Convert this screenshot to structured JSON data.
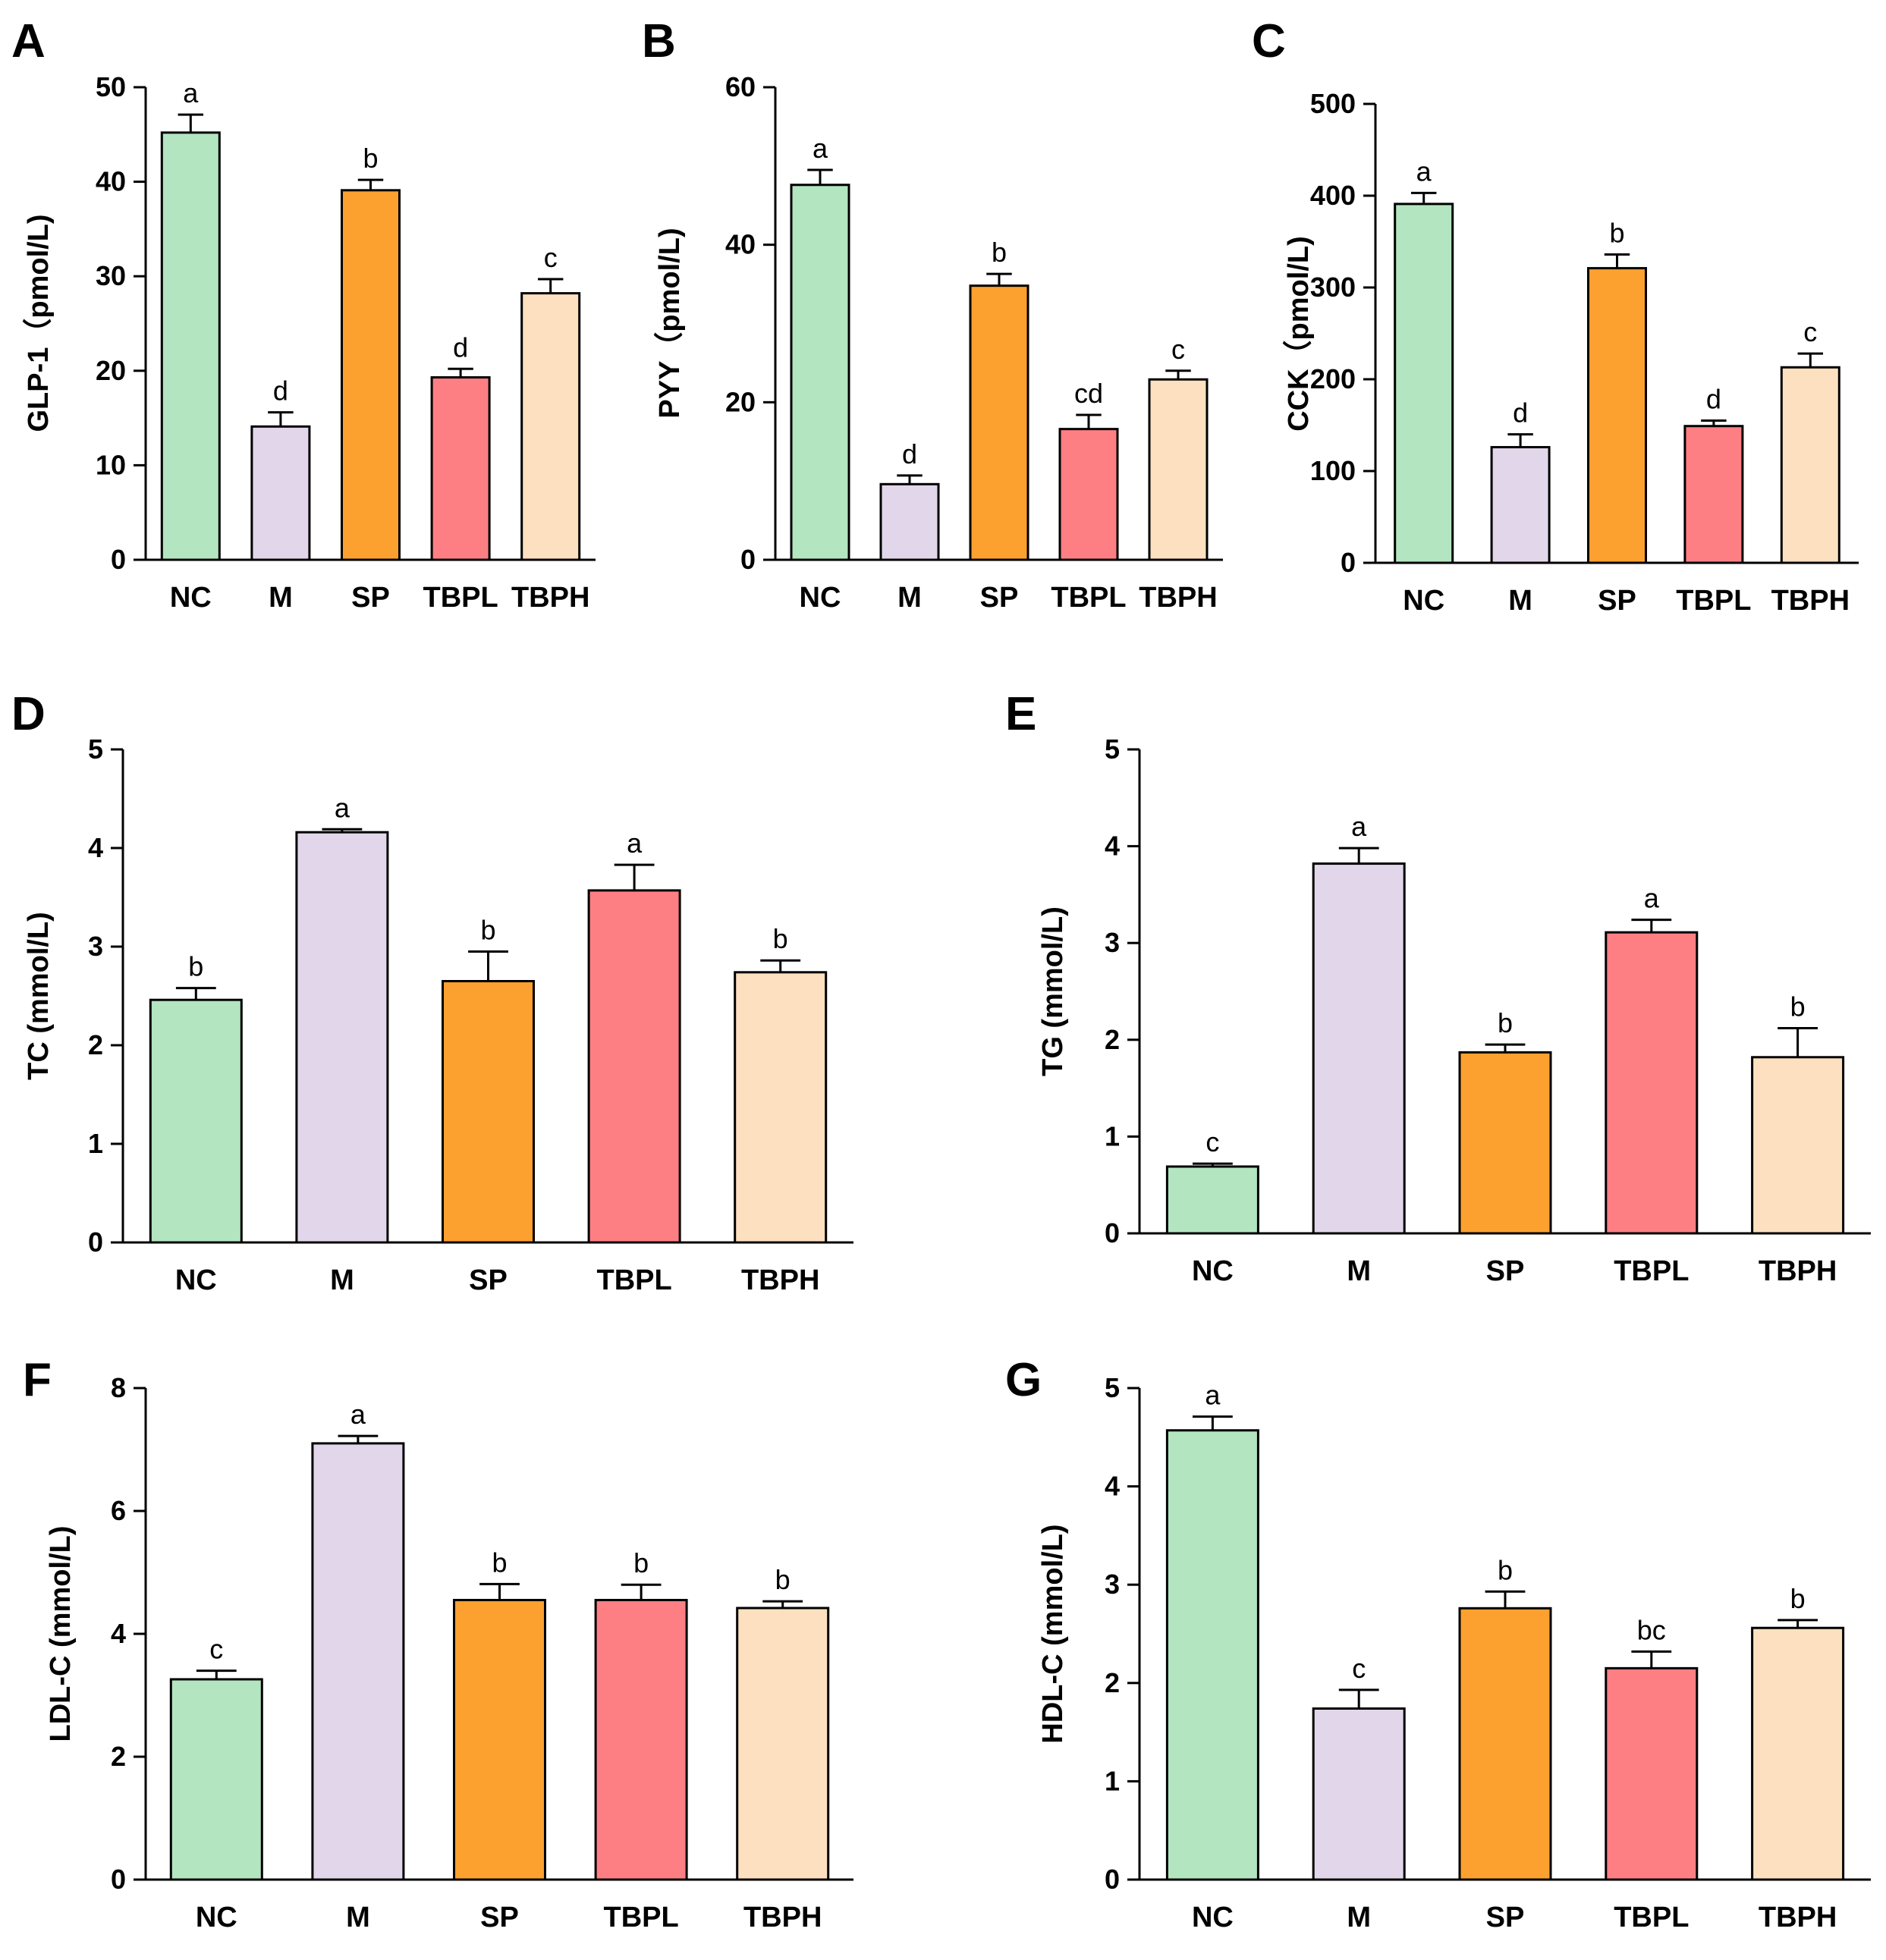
{
  "figure": {
    "description_free": true
  },
  "colors": {
    "NC": "#b3e5c1",
    "M": "#e2d7ea",
    "SP": "#fca02f",
    "TBPL": "#fe7f83",
    "TBPH": "#fde0c0",
    "stroke": "#000000"
  },
  "chart_data": [
    {
      "panel": "A",
      "type": "bar",
      "categories": [
        "NC",
        "M",
        "SP",
        "TBPL",
        "TBPH"
      ],
      "values": [
        45.2,
        14.1,
        39.1,
        19.3,
        28.2
      ],
      "errors": [
        1.9,
        1.5,
        1.1,
        0.9,
        1.5
      ],
      "letters": [
        "a",
        "d",
        "b",
        "d",
        "c"
      ],
      "ylabel": "GLP-1（pmol/L)",
      "ylim": [
        0,
        50
      ],
      "yticks": [
        0,
        10,
        20,
        30,
        40,
        50
      ]
    },
    {
      "panel": "B",
      "type": "bar",
      "categories": [
        "NC",
        "M",
        "SP",
        "TBPL",
        "TBPH"
      ],
      "values": [
        47.6,
        9.6,
        34.8,
        16.6,
        22.9
      ],
      "errors": [
        1.9,
        1.1,
        1.5,
        1.8,
        1.1
      ],
      "letters": [
        "a",
        "d",
        "b",
        "cd",
        "c"
      ],
      "ylabel": "PYY（pmol/L)",
      "ylim": [
        0,
        60
      ],
      "yticks": [
        0,
        20,
        40,
        60
      ]
    },
    {
      "panel": "C",
      "type": "bar",
      "categories": [
        "NC",
        "M",
        "SP",
        "TBPL",
        "TBPH"
      ],
      "values": [
        391,
        126,
        321,
        149,
        213
      ],
      "errors": [
        12,
        14,
        15,
        6,
        15
      ],
      "letters": [
        "a",
        "d",
        "b",
        "d",
        "c"
      ],
      "ylabel": "CCK（pmol/L)",
      "ylim": [
        0,
        500
      ],
      "yticks": [
        0,
        100,
        200,
        300,
        400,
        500
      ]
    },
    {
      "panel": "D",
      "type": "bar",
      "categories": [
        "NC",
        "M",
        "SP",
        "TBPL",
        "TBPH"
      ],
      "values": [
        2.46,
        4.16,
        2.65,
        3.57,
        2.74
      ],
      "errors": [
        0.12,
        0.03,
        0.3,
        0.26,
        0.12
      ],
      "letters": [
        "b",
        "a",
        "b",
        "a",
        "b"
      ],
      "ylabel": "TC (mmol/L)",
      "ylim": [
        0,
        5
      ],
      "yticks": [
        0,
        1,
        2,
        3,
        4,
        5
      ]
    },
    {
      "panel": "E",
      "type": "bar",
      "categories": [
        "NC",
        "M",
        "SP",
        "TBPL",
        "TBPH"
      ],
      "values": [
        0.69,
        3.82,
        1.87,
        3.11,
        1.82
      ],
      "errors": [
        0.03,
        0.16,
        0.08,
        0.13,
        0.3
      ],
      "letters": [
        "c",
        "a",
        "b",
        "a",
        "b"
      ],
      "ylabel": "TG (mmol/L)",
      "ylim": [
        0,
        5
      ],
      "yticks": [
        0,
        1,
        2,
        3,
        4,
        5
      ]
    },
    {
      "panel": "F",
      "type": "bar",
      "categories": [
        "NC",
        "M",
        "SP",
        "TBPL",
        "TBPH"
      ],
      "values": [
        3.26,
        7.1,
        4.55,
        4.55,
        4.42
      ],
      "errors": [
        0.14,
        0.12,
        0.26,
        0.25,
        0.11
      ],
      "letters": [
        "c",
        "a",
        "b",
        "b",
        "b"
      ],
      "ylabel": "LDL-C (mmol/L)",
      "ylim": [
        0,
        8
      ],
      "yticks": [
        0,
        2,
        4,
        6,
        8
      ]
    },
    {
      "panel": "G",
      "type": "bar",
      "categories": [
        "NC",
        "M",
        "SP",
        "TBPL",
        "TBPH"
      ],
      "values": [
        4.57,
        1.74,
        2.76,
        2.15,
        2.56
      ],
      "errors": [
        0.14,
        0.19,
        0.17,
        0.17,
        0.08
      ],
      "letters": [
        "a",
        "c",
        "b",
        "bc",
        "b"
      ],
      "ylabel": "HDL-C (mmol/L)",
      "ylim": [
        0,
        5
      ],
      "yticks": [
        0,
        1,
        2,
        3,
        4,
        5
      ]
    }
  ]
}
